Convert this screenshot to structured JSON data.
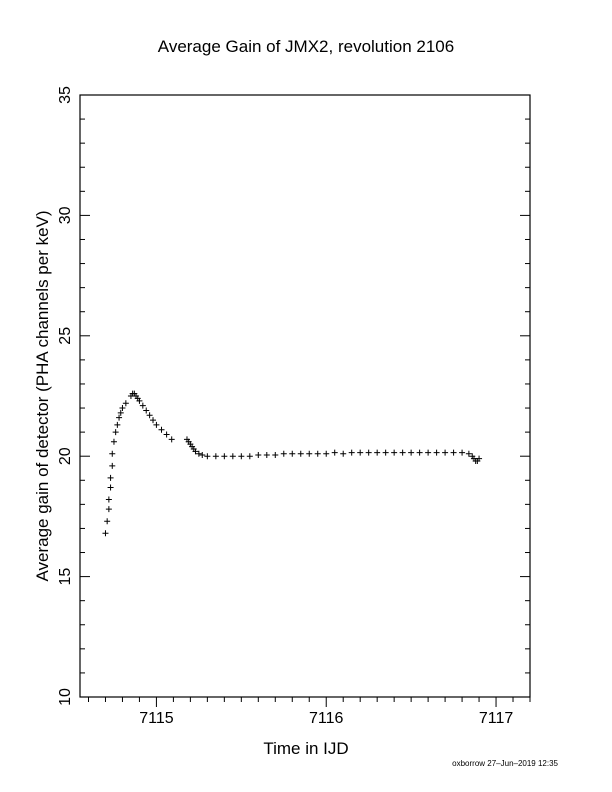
{
  "chart_data": {
    "type": "scatter",
    "title": "Average Gain of JMX2, revolution 2106",
    "xlabel": "Time in IJD",
    "ylabel": "Average gain of detector (PHA channels per keV)",
    "xlim": [
      7114.55,
      7117.2
    ],
    "ylim": [
      10,
      35
    ],
    "xticks": [
      7115,
      7116,
      7117
    ],
    "yticks": [
      10,
      15,
      20,
      25,
      30,
      35
    ],
    "marker": "+",
    "grid": false,
    "series": [
      {
        "x": [
          7114.7,
          7114.71,
          7114.72,
          7114.72,
          7114.73,
          7114.73,
          7114.74,
          7114.74,
          7114.75,
          7114.76,
          7114.77,
          7114.78,
          7114.79,
          7114.8,
          7114.82,
          7114.85,
          7114.86,
          7114.87,
          7114.88,
          7114.89,
          7114.9,
          7114.92,
          7114.94,
          7114.96,
          7114.98,
          7115.0,
          7115.03,
          7115.06,
          7115.09,
          7115.18,
          7115.19,
          7115.2,
          7115.21,
          7115.22,
          7115.23,
          7115.25,
          7115.27,
          7115.3,
          7115.35,
          7115.4,
          7115.45,
          7115.5,
          7115.55,
          7115.6,
          7115.65,
          7115.7,
          7115.75,
          7115.8,
          7115.85,
          7115.9,
          7115.95,
          7116.0,
          7116.05,
          7116.1,
          7116.15,
          7116.2,
          7116.25,
          7116.3,
          7116.35,
          7116.4,
          7116.45,
          7116.5,
          7116.55,
          7116.6,
          7116.65,
          7116.7,
          7116.75,
          7116.8,
          7116.84,
          7116.86,
          7116.87,
          7116.88,
          7116.89,
          7116.9
        ],
        "y": [
          16.8,
          17.3,
          17.8,
          18.2,
          18.7,
          19.1,
          19.6,
          20.1,
          20.6,
          21.0,
          21.3,
          21.6,
          21.8,
          22.0,
          22.2,
          22.5,
          22.6,
          22.6,
          22.5,
          22.4,
          22.3,
          22.1,
          21.9,
          21.7,
          21.5,
          21.3,
          21.1,
          20.9,
          20.7,
          20.7,
          20.6,
          20.5,
          20.4,
          20.3,
          20.2,
          20.1,
          20.05,
          20.0,
          20.0,
          20.0,
          20.0,
          20.0,
          20.0,
          20.05,
          20.05,
          20.05,
          20.1,
          20.1,
          20.1,
          20.1,
          20.1,
          20.1,
          20.15,
          20.1,
          20.15,
          20.15,
          20.15,
          20.15,
          20.15,
          20.15,
          20.15,
          20.15,
          20.15,
          20.15,
          20.15,
          20.15,
          20.15,
          20.15,
          20.1,
          20.0,
          19.9,
          19.8,
          19.8,
          19.9
        ]
      }
    ]
  },
  "footer": "oxborrow 27–Jun–2019 12:35"
}
